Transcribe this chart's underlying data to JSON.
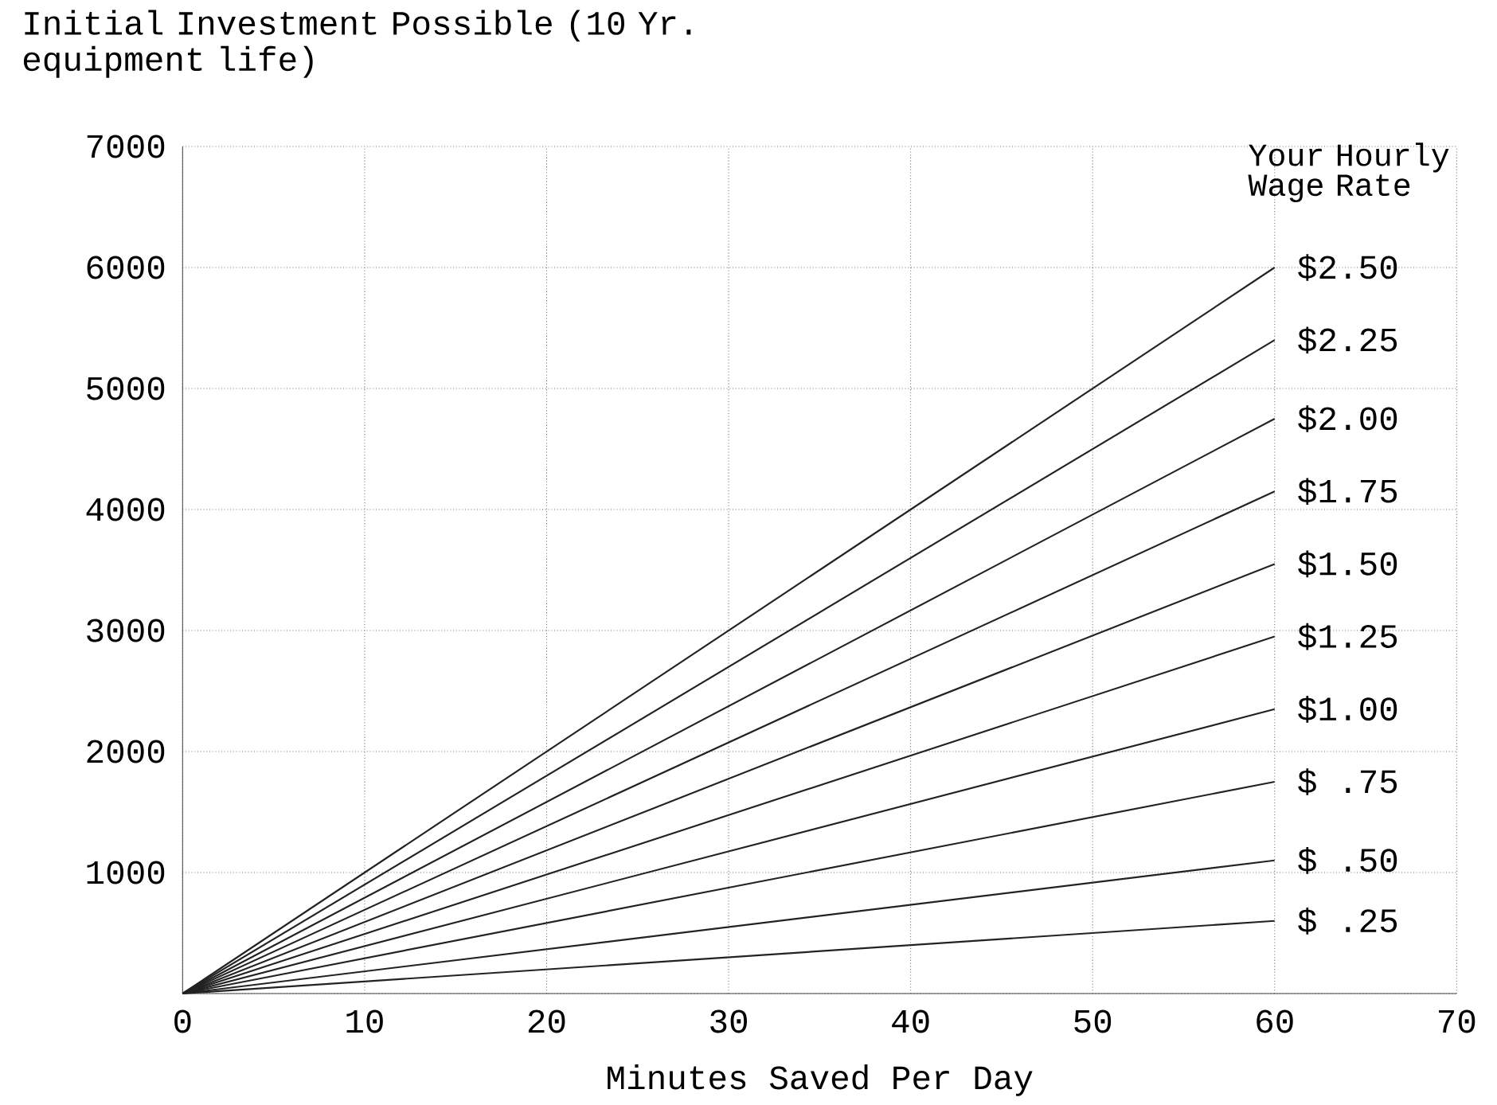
{
  "chart_data": {
    "type": "line",
    "xlabel": "Minutes Saved Per Day",
    "ylabel": "Initial Investment Possible (10 Yr. equipment life)",
    "legend_title": "Your Hourly Wage Rate",
    "x": [
      0,
      60
    ],
    "series": [
      {
        "name": "$2.50",
        "color": "#222222",
        "values": [
          0,
          6000
        ]
      },
      {
        "name": "$2.25",
        "color": "#222222",
        "values": [
          0,
          5400
        ]
      },
      {
        "name": "$2.00",
        "color": "#222222",
        "values": [
          0,
          4750
        ]
      },
      {
        "name": "$1.75",
        "color": "#222222",
        "values": [
          0,
          4150
        ]
      },
      {
        "name": "$1.50",
        "color": "#222222",
        "values": [
          0,
          3550
        ]
      },
      {
        "name": "$1.25",
        "color": "#222222",
        "values": [
          0,
          2950
        ]
      },
      {
        "name": "$1.00",
        "color": "#222222",
        "values": [
          0,
          2350
        ]
      },
      {
        "name": "$ .75",
        "color": "#222222",
        "values": [
          0,
          1750
        ]
      },
      {
        "name": "$ .50",
        "color": "#222222",
        "values": [
          0,
          1100
        ]
      },
      {
        "name": "$ .25",
        "color": "#222222",
        "values": [
          0,
          600
        ]
      }
    ],
    "xlim": [
      0,
      70
    ],
    "ylim": [
      0,
      7000
    ],
    "xticks": [
      0,
      10,
      20,
      30,
      40,
      50,
      60,
      70
    ],
    "yticks": [
      {
        "value": 0,
        "label": null
      },
      1000,
      2000,
      3000,
      4000,
      5000,
      6000,
      7000
    ],
    "grid": true,
    "marker": "none",
    "line_style": "solid"
  }
}
